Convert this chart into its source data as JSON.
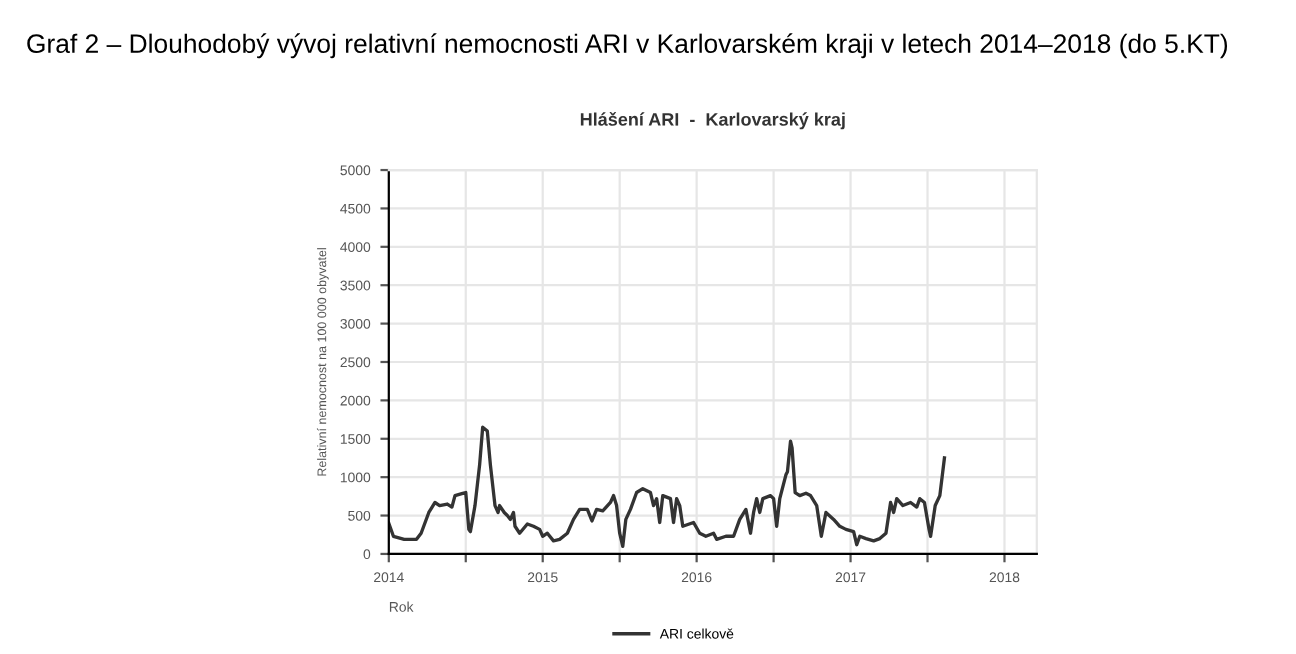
{
  "chart_data": {
    "type": "line",
    "title": "Hlášení ARI  -  Karlovarský kraj",
    "subtitle": "Graf 2 – Dlouhodobý vývoj relativní nemocnosti ARI v Karlovarském kraji v letech 2014–2018 (do 5.KT)",
    "xlabel": "Rok",
    "ylabel": "Relativní nemocnost na 100 000 obyvatel",
    "xlim": [
      2014.0,
      2018.21
    ],
    "xticks": [
      2014,
      {
        "value": 2014.5,
        "label": null
      },
      2015,
      {
        "value": 2015.5,
        "label": null
      },
      2016,
      {
        "value": 2016.5,
        "label": null
      },
      2017,
      {
        "value": 2017.5,
        "label": null
      },
      2018
    ],
    "ylim": [
      0,
      5000
    ],
    "yticks": [
      0,
      500,
      1000,
      1500,
      2000,
      2500,
      3000,
      3500,
      4000,
      4500,
      5000
    ],
    "grid": true,
    "legend": "bottom",
    "marker": "none",
    "line_style": "solid",
    "series": [
      {
        "name": "ARI celkově",
        "color": "#333333",
        "x": [
          2014.0,
          2014.03,
          2014.1,
          2014.18,
          2014.21,
          2014.26,
          2014.3,
          2014.33,
          2014.38,
          2014.41,
          2014.43,
          2014.48,
          2014.5,
          2014.52,
          2014.53,
          2014.56,
          2014.59,
          2014.61,
          2014.64,
          2014.66,
          2014.69,
          2014.71,
          2014.72,
          2014.75,
          2014.77,
          2014.79,
          2014.81,
          2014.82,
          2014.85,
          2014.9,
          2014.94,
          2014.98,
          2015.0,
          2015.03,
          2015.07,
          2015.11,
          2015.16,
          2015.2,
          2015.24,
          2015.29,
          2015.32,
          2015.35,
          2015.39,
          2015.44,
          2015.46,
          2015.48,
          2015.5,
          2015.52,
          2015.54,
          2015.57,
          2015.61,
          2015.65,
          2015.7,
          2015.72,
          2015.74,
          2015.76,
          2015.78,
          2015.83,
          2015.85,
          2015.87,
          2015.89,
          2015.91,
          2015.98,
          2016.02,
          2016.06,
          2016.11,
          2016.13,
          2016.19,
          2016.24,
          2016.28,
          2016.32,
          2016.35,
          2016.37,
          2016.39,
          2016.41,
          2016.43,
          2016.48,
          2016.5,
          2016.52,
          2016.54,
          2016.58,
          2016.59,
          2016.61,
          2016.62,
          2016.64,
          2016.67,
          2016.71,
          2016.74,
          2016.78,
          2016.81,
          2016.84,
          2016.89,
          2016.93,
          2016.97,
          2017.02,
          2017.04,
          2017.06,
          2017.1,
          2017.15,
          2017.19,
          2017.23,
          2017.26,
          2017.28,
          2017.3,
          2017.34,
          2017.39,
          2017.43,
          2017.45,
          2017.48,
          2017.51,
          2017.52,
          2017.55,
          2017.58,
          2017.61
        ],
        "values": [
          400,
          230,
          190,
          190,
          270,
          540,
          670,
          630,
          650,
          610,
          760,
          790,
          800,
          320,
          290,
          630,
          1160,
          1650,
          1600,
          1160,
          630,
          540,
          630,
          540,
          500,
          450,
          540,
          360,
          270,
          390,
          360,
          320,
          230,
          270,
          170,
          190,
          270,
          450,
          580,
          580,
          430,
          580,
          560,
          670,
          760,
          630,
          270,
          100,
          450,
          580,
          800,
          850,
          800,
          630,
          720,
          410,
          760,
          720,
          410,
          720,
          630,
          360,
          410,
          270,
          230,
          270,
          190,
          230,
          230,
          450,
          580,
          270,
          540,
          720,
          540,
          720,
          760,
          720,
          360,
          720,
          1030,
          1070,
          1470,
          1380,
          800,
          760,
          790,
          760,
          630,
          230,
          540,
          450,
          360,
          320,
          290,
          120,
          230,
          200,
          170,
          200,
          270,
          670,
          540,
          720,
          630,
          670,
          610,
          720,
          670,
          320,
          230,
          630,
          760,
          1250
        ]
      }
    ]
  }
}
